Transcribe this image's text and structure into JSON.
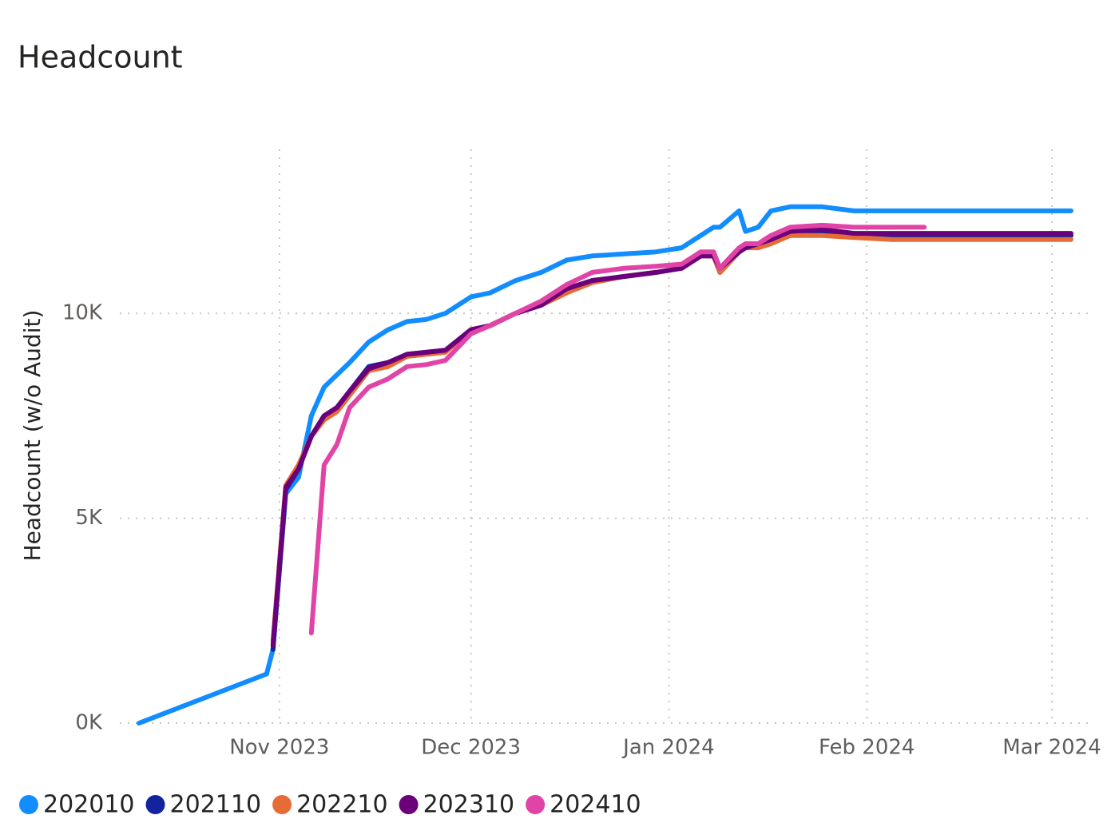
{
  "chart_data": {
    "type": "line",
    "title": "Headcount",
    "y_label": "Headcount (w/o Audit)",
    "x": [
      "2023-10-10",
      "2023-10-30",
      "2023-10-31",
      "2023-11-02",
      "2023-11-04",
      "2023-11-06",
      "2023-11-08",
      "2023-11-10",
      "2023-11-12",
      "2023-11-15",
      "2023-11-18",
      "2023-11-21",
      "2023-11-24",
      "2023-11-27",
      "2023-12-01",
      "2023-12-04",
      "2023-12-08",
      "2023-12-12",
      "2023-12-16",
      "2023-12-20",
      "2023-12-25",
      "2023-12-30",
      "2024-01-03",
      "2024-01-06",
      "2024-01-08",
      "2024-01-09",
      "2024-01-12",
      "2024-01-13",
      "2024-01-15",
      "2024-01-17",
      "2024-01-20",
      "2024-01-25",
      "2024-01-30",
      "2024-02-05",
      "2024-02-10",
      "2024-02-20",
      "2024-03-04"
    ],
    "series": [
      {
        "name": "202010",
        "color": "#118DFF",
        "values": [
          0,
          1200,
          1800,
          5600,
          6000,
          7500,
          8200,
          8500,
          8800,
          9300,
          9600,
          9800,
          9850,
          10000,
          10400,
          10500,
          10800,
          11000,
          11300,
          11400,
          11450,
          11500,
          11600,
          11900,
          12100,
          12100,
          12500,
          12000,
          12100,
          12500,
          12600,
          12600,
          12500,
          12500,
          12500,
          12500,
          12500
        ]
      },
      {
        "name": "202110",
        "color": "#12239E",
        "values": [
          null,
          null,
          1800,
          5700,
          6200,
          7000,
          7500,
          7700,
          8100,
          8700,
          8800,
          9000,
          9050,
          9100,
          9600,
          9700,
          10000,
          10200,
          10600,
          10800,
          10900,
          11000,
          11100,
          11400,
          11400,
          11000,
          11500,
          11600,
          11700,
          11800,
          12000,
          12000,
          11900,
          11900,
          11900,
          11900,
          11900
        ]
      },
      {
        "name": "202210",
        "color": "#E66C37",
        "values": [
          null,
          null,
          2000,
          5800,
          6300,
          7000,
          7400,
          7600,
          8000,
          8600,
          8700,
          8950,
          9000,
          9050,
          9600,
          9700,
          10000,
          10200,
          10500,
          10750,
          10900,
          11000,
          11100,
          11400,
          11400,
          11000,
          11500,
          11600,
          11600,
          11700,
          11900,
          11900,
          11850,
          11800,
          11800,
          11800,
          11800
        ]
      },
      {
        "name": "202310",
        "color": "#6B007B",
        "values": [
          null,
          null,
          1900,
          5750,
          6200,
          7000,
          7500,
          7700,
          8100,
          8650,
          8800,
          9000,
          9050,
          9100,
          9600,
          9700,
          10000,
          10200,
          10600,
          10800,
          10900,
          11000,
          11100,
          11400,
          11400,
          11100,
          11500,
          11600,
          11700,
          11800,
          12000,
          12050,
          11950,
          11950,
          11950,
          11950,
          11950
        ]
      },
      {
        "name": "202410",
        "color": "#E044A7",
        "values": [
          null,
          null,
          null,
          null,
          null,
          2200,
          6300,
          6800,
          7700,
          8200,
          8400,
          8700,
          8750,
          8850,
          9500,
          9700,
          10000,
          10300,
          10700,
          11000,
          11100,
          11150,
          11200,
          11500,
          11500,
          11100,
          11600,
          11700,
          11700,
          11900,
          12100,
          12150,
          12100,
          12100,
          12100,
          null,
          null
        ]
      }
    ],
    "xlim": [
      "2023-10-07",
      "2024-03-07"
    ],
    "xticks": [
      {
        "value": "2023-11-01",
        "label": "Nov 2023"
      },
      {
        "value": "2023-12-01",
        "label": "Dec 2023"
      },
      {
        "value": "2024-01-01",
        "label": "Jan 2024"
      },
      {
        "value": "2024-02-01",
        "label": "Feb 2024"
      },
      {
        "value": "2024-03-01",
        "label": "Mar 2024"
      }
    ],
    "ylim": [
      0,
      14000
    ],
    "yticks": [
      {
        "value": 0,
        "label": "0K"
      },
      {
        "value": 5000,
        "label": "5K"
      },
      {
        "value": 10000,
        "label": "10K"
      }
    ],
    "grid": true
  }
}
